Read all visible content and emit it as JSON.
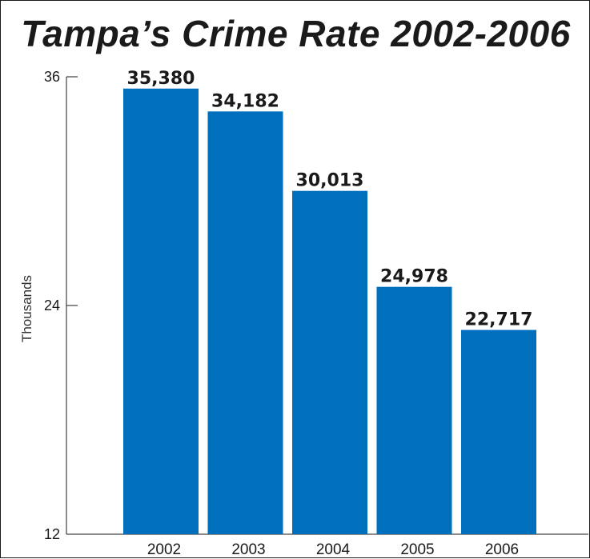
{
  "chart_data": {
    "type": "bar",
    "title": "Tampa’s Crime Rate 2002-2006",
    "xlabel": "",
    "ylabel": "Thousands",
    "categories": [
      "2002",
      "2003",
      "2004",
      "2005",
      "2006"
    ],
    "values": [
      35.38,
      34.182,
      30.013,
      24.978,
      22.717
    ],
    "value_labels": [
      "35,380",
      "34,182",
      "30,013",
      "24,978",
      "22,717"
    ],
    "ylim": [
      12,
      36
    ],
    "yticks": [
      12,
      24,
      36
    ],
    "ytick_labels": [
      "12",
      "24",
      "36"
    ],
    "grid": false,
    "legend": "none",
    "bar_color": "#0070bc"
  }
}
